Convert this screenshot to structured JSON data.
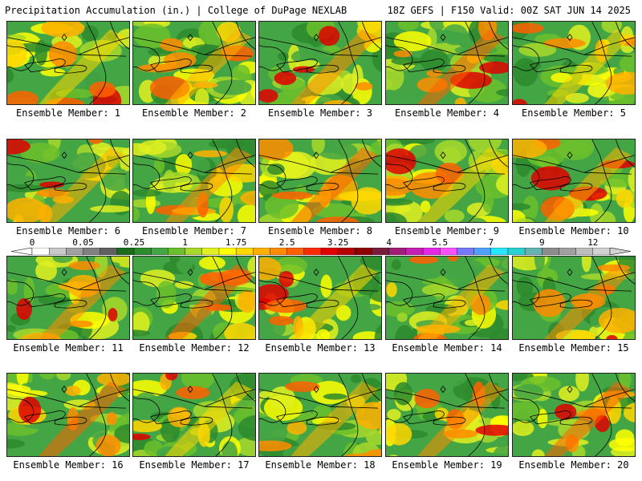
{
  "header": {
    "title_left": "Precipitation Accumulation (in.) | College of DuPage NEXLAB",
    "title_right": "18Z GEFS | F150 Valid: 00Z SAT JUN 14 2025"
  },
  "colorbar": {
    "labels": [
      "0",
      "0.05",
      "0.25",
      "1",
      "1.75",
      "2.5",
      "3.25",
      "4",
      "5.5",
      "7",
      "9",
      "12"
    ],
    "colors": [
      "#ffffff",
      "#c8c8c8",
      "#a0a0a0",
      "#808080",
      "#606060",
      "#1a6b1a",
      "#2d8a2d",
      "#44a544",
      "#6cbf2c",
      "#a8d92a",
      "#e0f020",
      "#ffff00",
      "#ffd700",
      "#ffb000",
      "#ff8c00",
      "#ff6000",
      "#ff2a00",
      "#e00000",
      "#b40000",
      "#8c0000",
      "#781e3c",
      "#a01e78",
      "#c81eb4",
      "#e628e6",
      "#ff50ff",
      "#7878ff",
      "#50a0ff",
      "#28e6ff",
      "#28d2d2",
      "#64b4b4",
      "#8c8c8c",
      "#a0a0a0",
      "#bebebe",
      "#d2d2d2"
    ]
  },
  "members": [
    {
      "label": "Ensemble Member: 1"
    },
    {
      "label": "Ensemble Member: 2"
    },
    {
      "label": "Ensemble Member: 3"
    },
    {
      "label": "Ensemble Member: 4"
    },
    {
      "label": "Ensemble Member: 5"
    },
    {
      "label": "Ensemble Member: 6"
    },
    {
      "label": "Ensemble Member: 7"
    },
    {
      "label": "Ensemble Member: 8"
    },
    {
      "label": "Ensemble Member: 9"
    },
    {
      "label": "Ensemble Member: 10"
    },
    {
      "label": "Ensemble Member: 11"
    },
    {
      "label": "Ensemble Member: 12"
    },
    {
      "label": "Ensemble Member: 13"
    },
    {
      "label": "Ensemble Member: 14"
    },
    {
      "label": "Ensemble Member: 15"
    },
    {
      "label": "Ensemble Member: 16"
    },
    {
      "label": "Ensemble Member: 17"
    },
    {
      "label": "Ensemble Member: 18"
    },
    {
      "label": "Ensemble Member: 19"
    },
    {
      "label": "Ensemble Member: 20"
    }
  ]
}
